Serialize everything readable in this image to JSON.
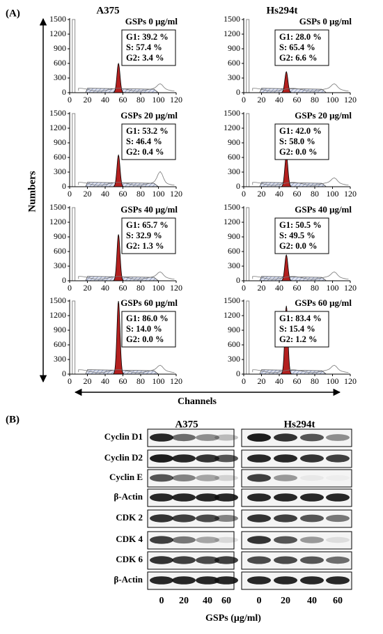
{
  "panel_a": {
    "label": "(A)",
    "y_axis_label": "Numbers",
    "x_axis_label": "Channels",
    "yticks": [
      0,
      300,
      600,
      900,
      1200,
      1500
    ],
    "xticks": [
      0,
      20,
      40,
      60,
      80,
      100,
      120
    ],
    "columns": [
      {
        "name": "A375",
        "panels": [
          {
            "condition": "GSPs 0 μg/ml",
            "stats": [
              "G1: 39.2 %",
              "S: 57.4 %",
              "G2: 3.4 %"
            ]
          },
          {
            "condition": "GSPs 20 μg/ml",
            "stats": [
              "G1: 53.2 %",
              "S: 46.4 %",
              "G2: 0.4 %"
            ]
          },
          {
            "condition": "GSPs 40 μg/ml",
            "stats": [
              "G1: 65.7 %",
              "S: 32.9 %",
              "G2: 1.3 %"
            ]
          },
          {
            "condition": "GSPs 60 μg/ml",
            "stats": [
              "G1: 86.0 %",
              "S: 14.0 %",
              "G2: 0.0 %"
            ]
          }
        ]
      },
      {
        "name": "Hs294t",
        "panels": [
          {
            "condition": "GSPs 0 μg/ml",
            "stats": [
              "G1: 28.0 %",
              "S: 65.4 %",
              "G2: 6.6 %"
            ]
          },
          {
            "condition": "GSPs 20 μg/ml",
            "stats": [
              "G1: 42.0 %",
              "S: 58.0 %",
              "G2: 0.0 %"
            ]
          },
          {
            "condition": "GSPs 40 μg/ml",
            "stats": [
              "G1: 50.5 %",
              "S: 49.5 %",
              "G2: 0.0 %"
            ]
          },
          {
            "condition": "GSPs 60 μg/ml",
            "stats": [
              "G1: 83.4 %",
              "S: 15.4 %",
              "G2: 1.2 %"
            ]
          }
        ]
      }
    ]
  },
  "panel_b": {
    "label": "(B)",
    "columns": [
      "A375",
      "Hs294t"
    ],
    "proteins": [
      "Cyclin D1",
      "Cyclin D2",
      "Cyclin E",
      "β-Actin",
      "CDK 2",
      "CDK 4",
      "CDK 6",
      "β-Actin"
    ],
    "lanes": [
      "0",
      "20",
      "40",
      "60"
    ],
    "x_axis_label": "GSPs (μg/ml)"
  }
}
